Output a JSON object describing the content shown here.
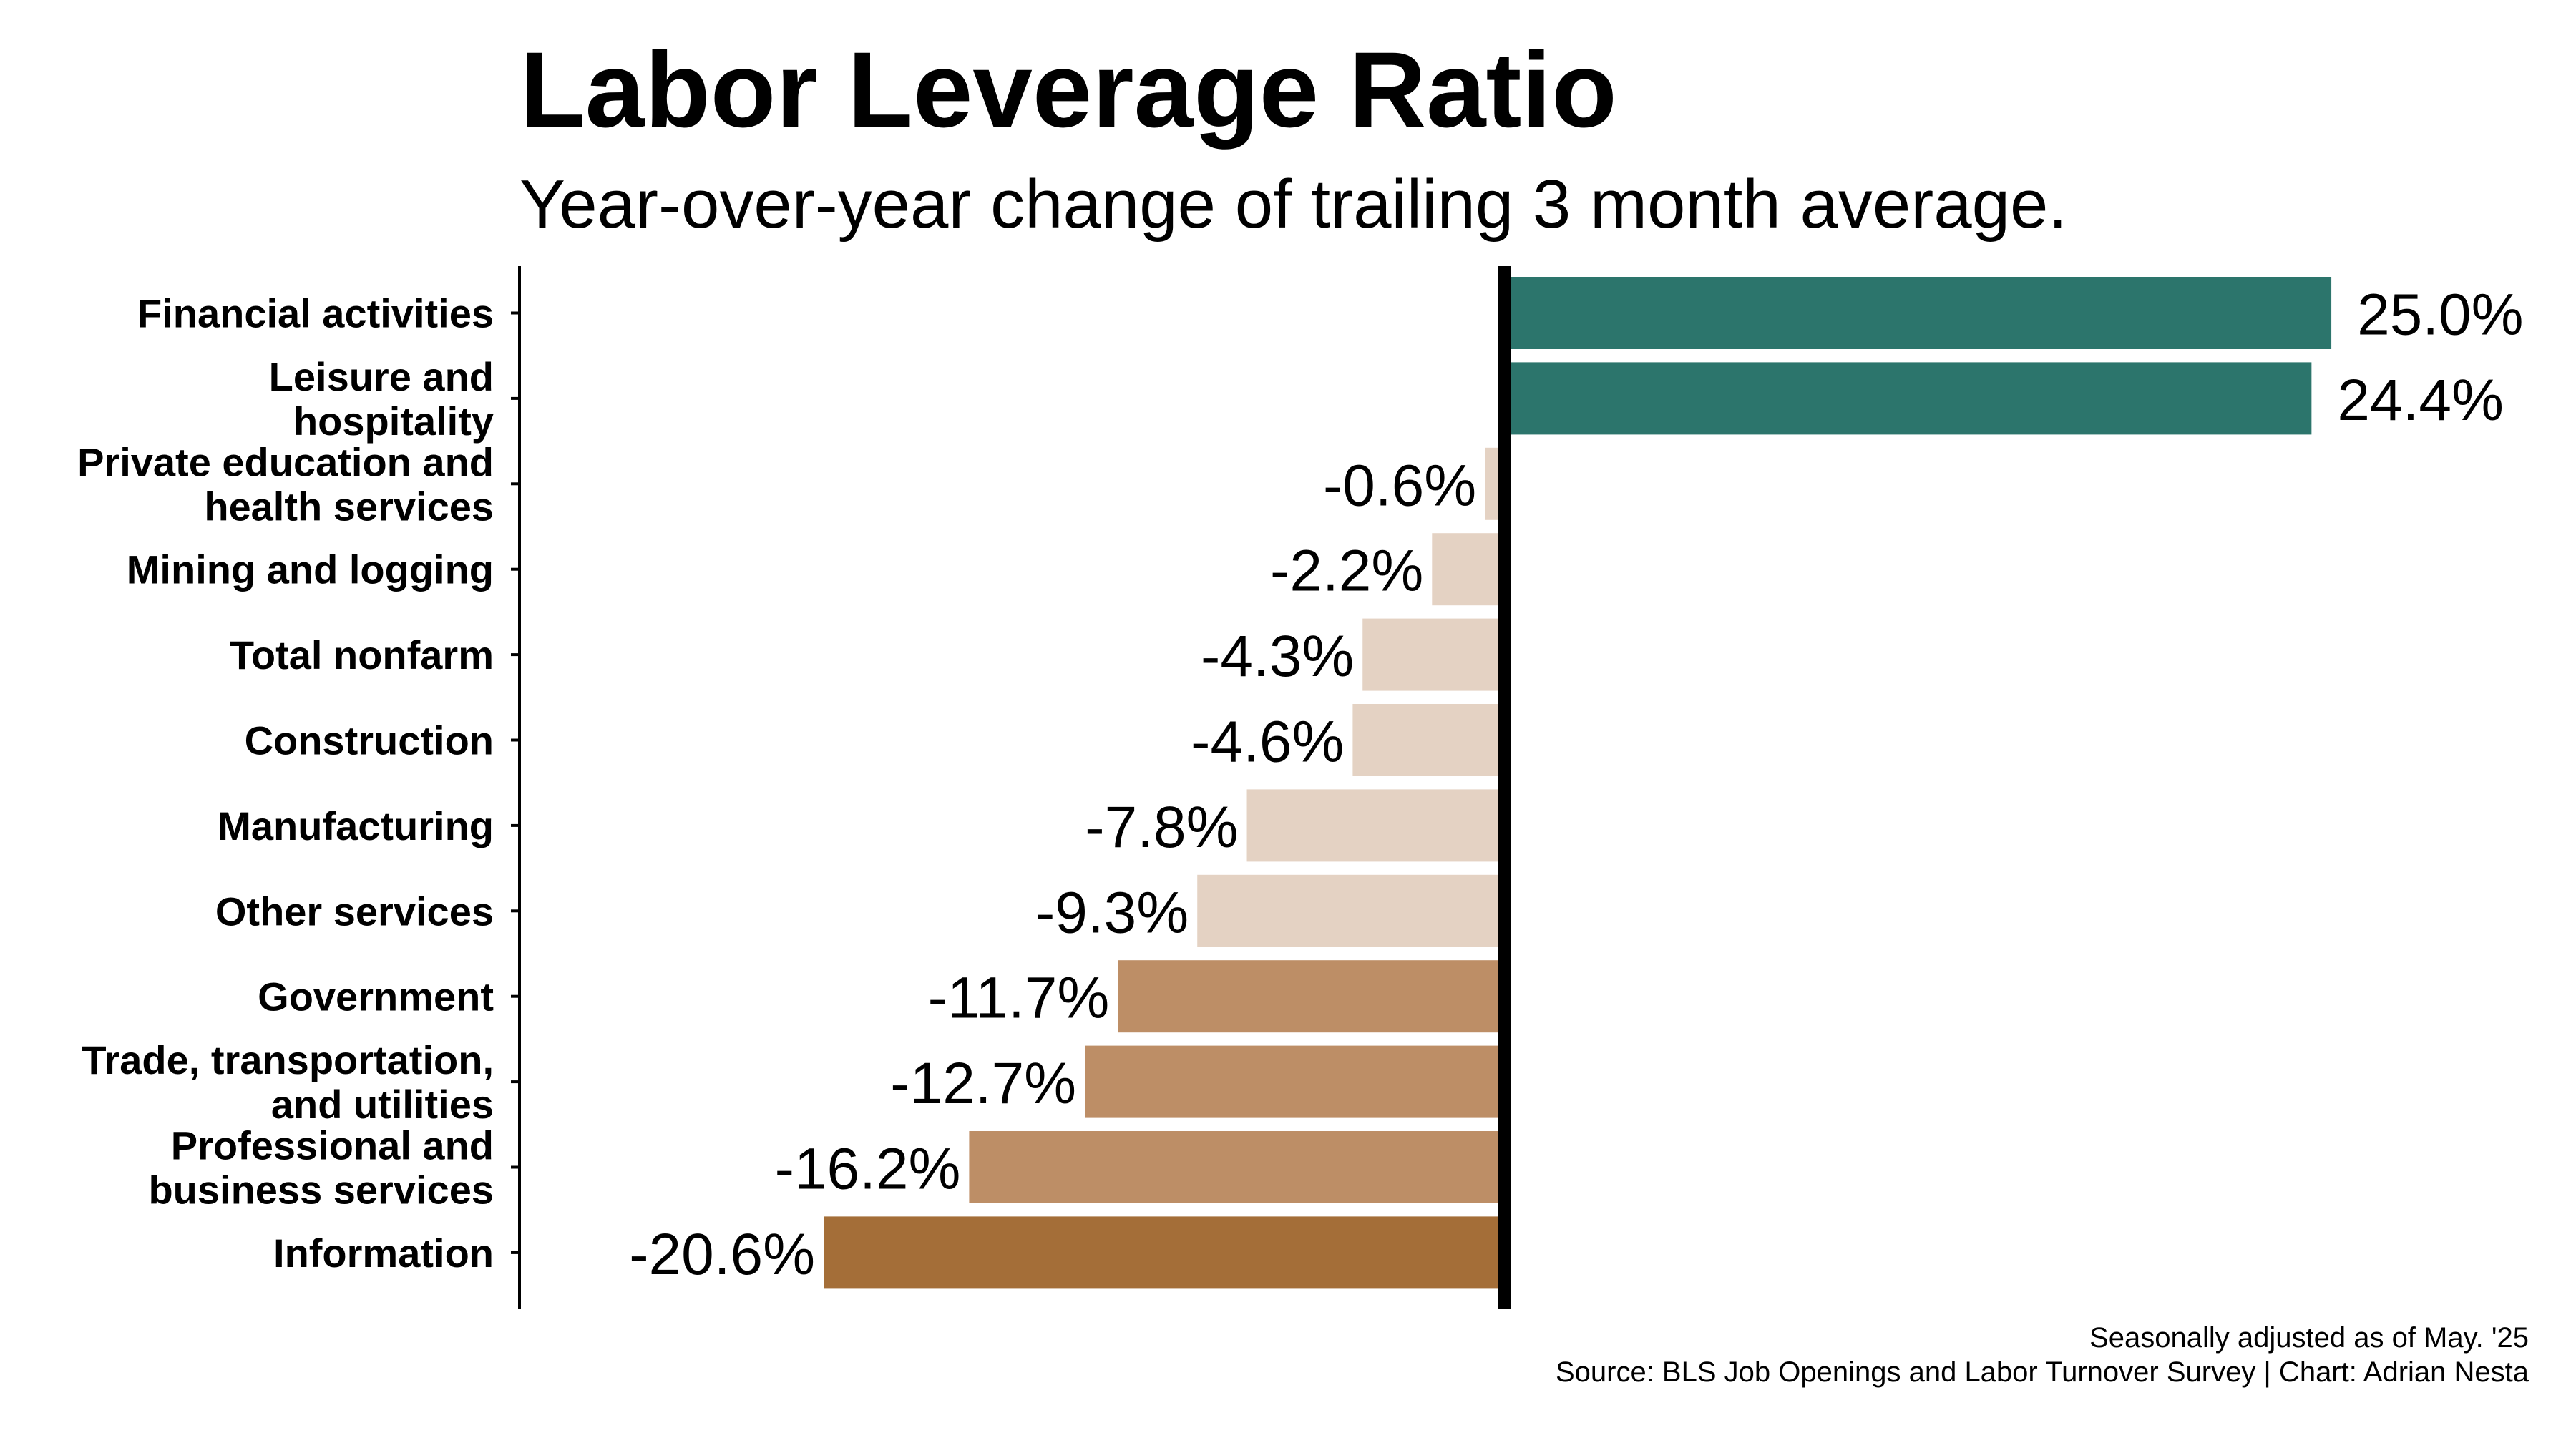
{
  "chart_data": {
    "type": "bar",
    "orientation": "horizontal",
    "title": "Labor Leverage Ratio",
    "subtitle": "Year-over-year change of trailing 3 month average.",
    "xlabel": "",
    "ylabel": "",
    "grid": false,
    "categories": [
      [
        "Financial activities"
      ],
      [
        "Leisure and",
        "hospitality"
      ],
      [
        "Private education and",
        "health services"
      ],
      [
        "Mining and logging"
      ],
      [
        "Total nonfarm"
      ],
      [
        "Construction"
      ],
      [
        "Manufacturing"
      ],
      [
        "Other services"
      ],
      [
        "Government"
      ],
      [
        "Trade, transportation,",
        "and utilities"
      ],
      [
        "Professional and",
        "business services"
      ],
      [
        "Information"
      ]
    ],
    "values": [
      25.0,
      24.4,
      -0.6,
      -2.2,
      -4.3,
      -4.6,
      -7.8,
      -9.3,
      -11.7,
      -12.7,
      -16.2,
      -20.6
    ],
    "value_labels": [
      "25.0%",
      "24.4%",
      "-0.6%",
      "-2.2%",
      "-4.3%",
      "-4.6%",
      "-7.8%",
      "-9.3%",
      "-11.7%",
      "-12.7%",
      "-16.2%",
      "-20.6%"
    ],
    "xlim": [
      -29.8,
      32.4
    ],
    "colors": {
      "positive": "#2c756c",
      "small_negative": "#e4d2c3",
      "mid_negative": "#bd8e66",
      "large_negative": "#a46e38",
      "zero_line": "#000000",
      "axis": "#000000"
    }
  },
  "footer": {
    "note": "Seasonally adjusted as of May. '25",
    "source": "Source: BLS Job Openings and Labor Turnover Survey | Chart: Adrian Nesta"
  }
}
